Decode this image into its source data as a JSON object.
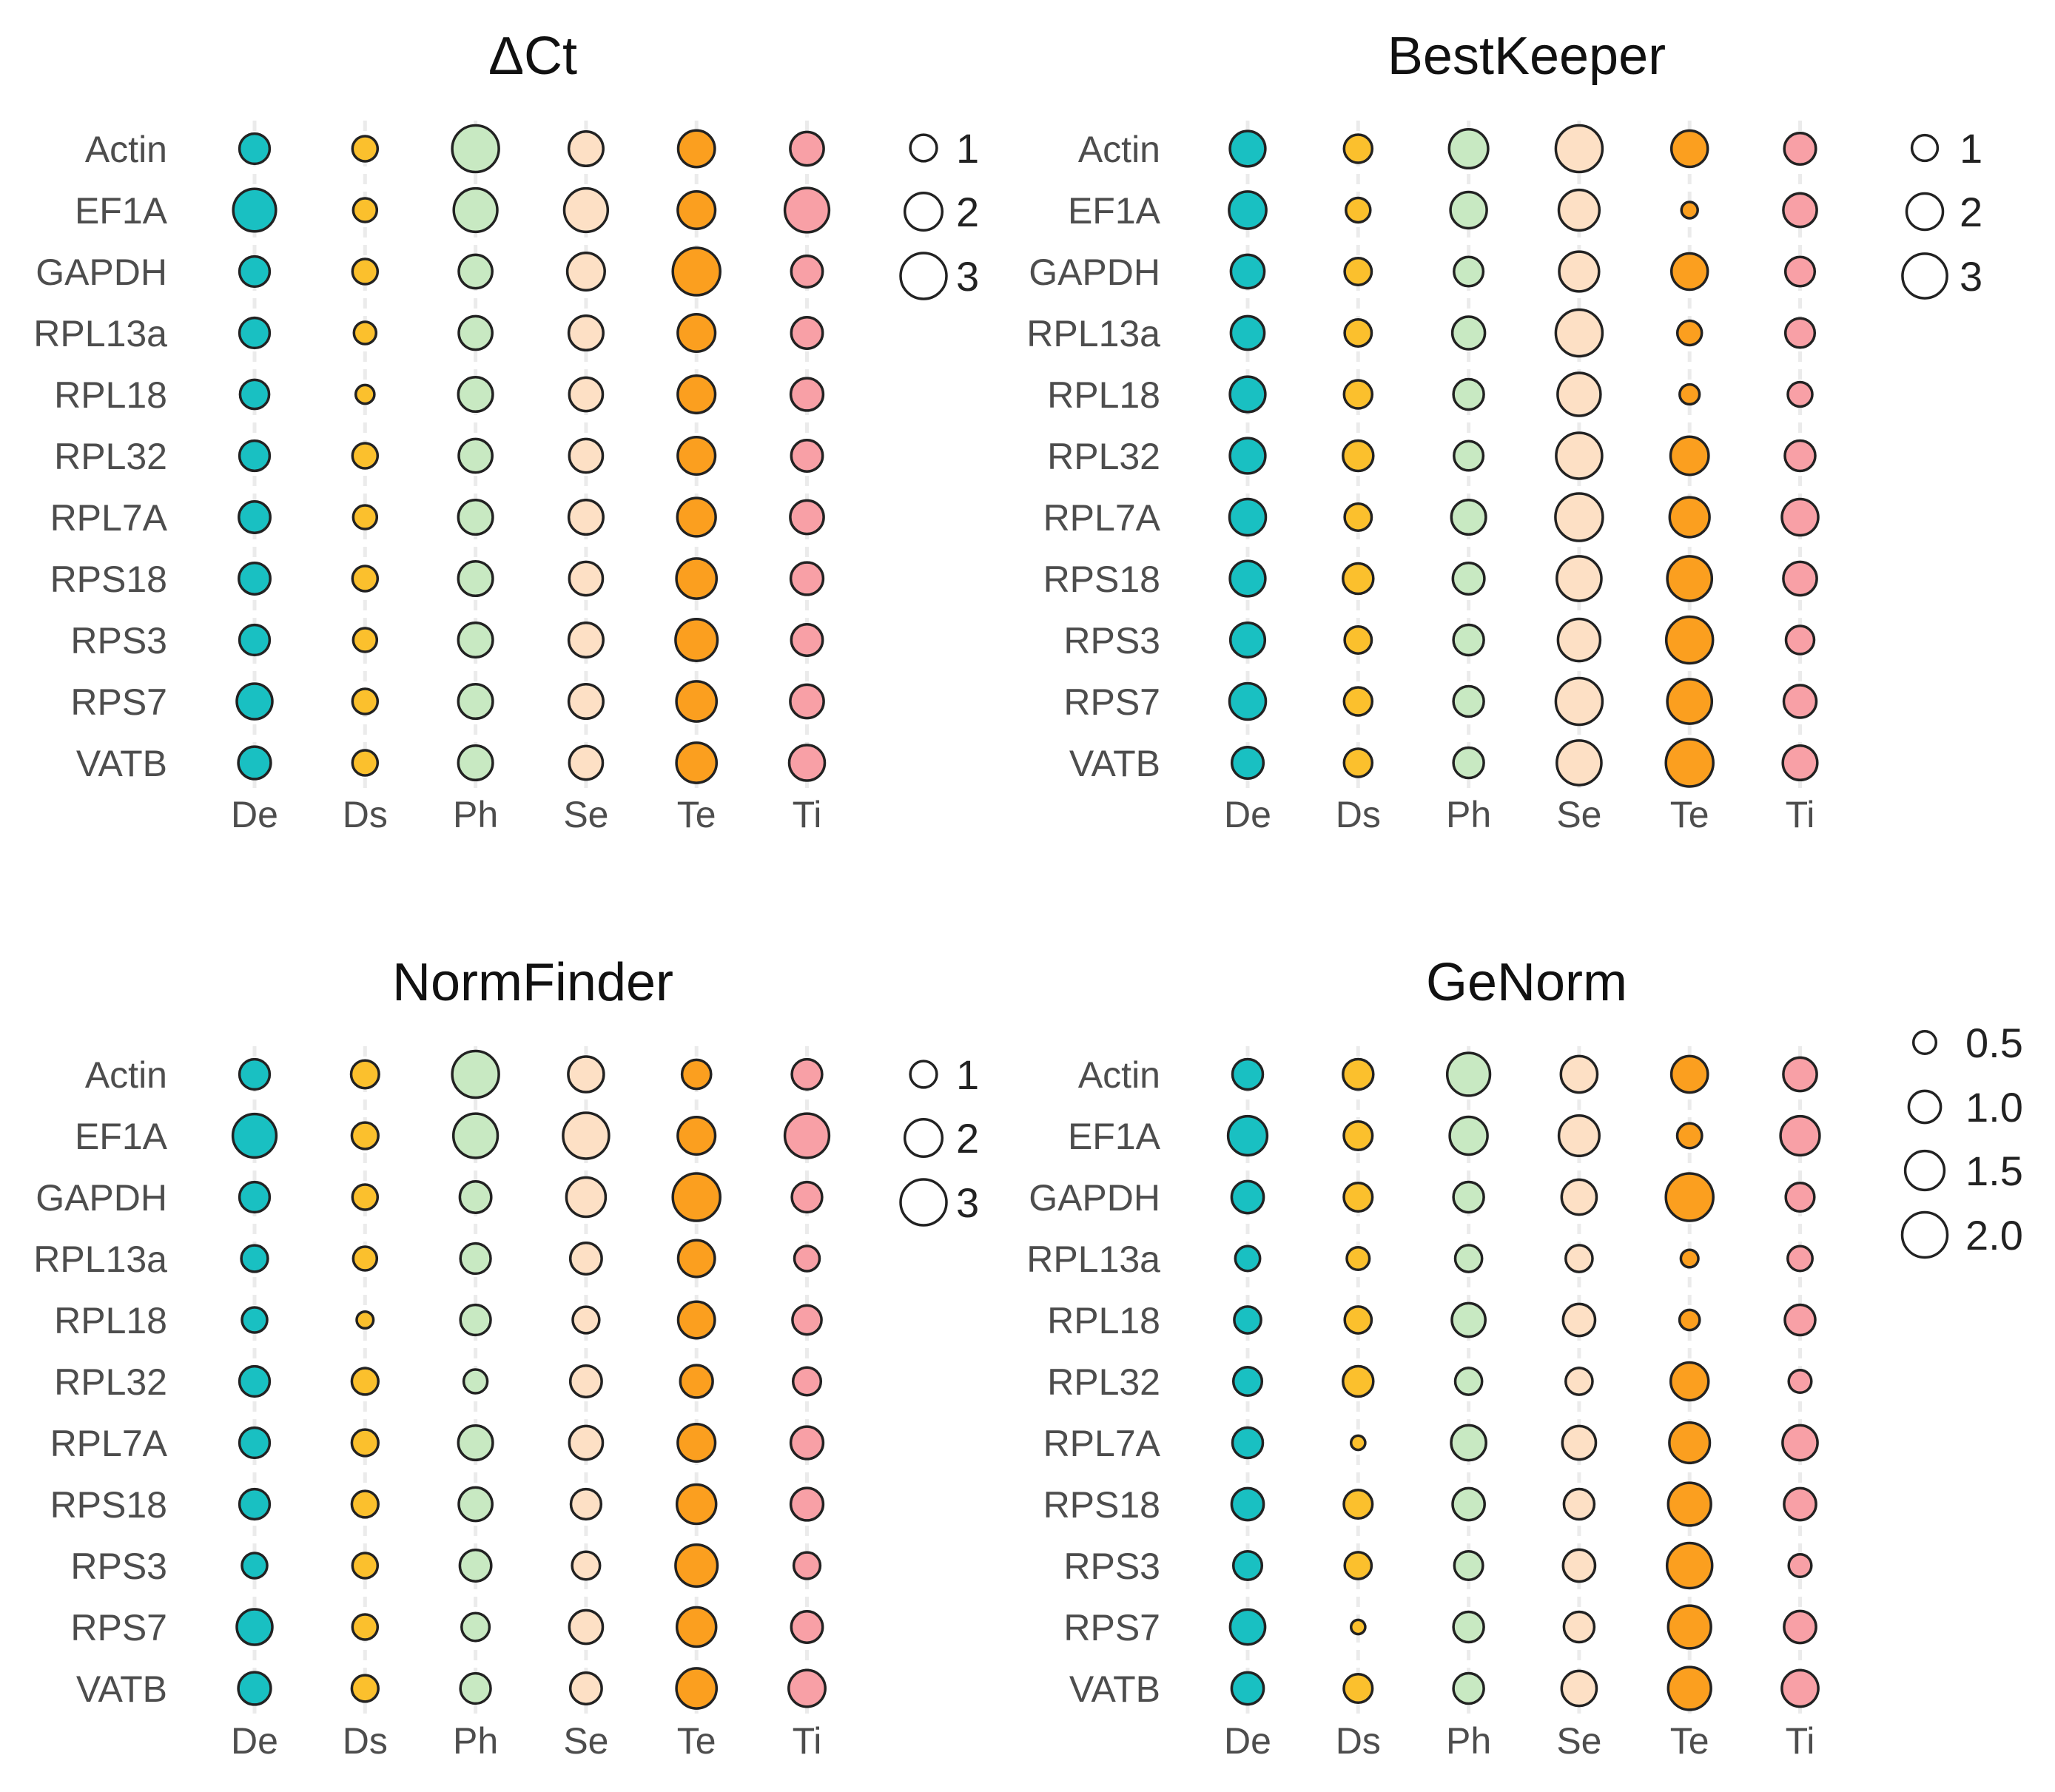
{
  "colors": {
    "De": "#19c0c2",
    "Ds": "#fbc02d",
    "Ph": "#c8e9c2",
    "Se": "#fde0c5",
    "Te": "#fb9f1f",
    "Ti": "#f8a0a6"
  },
  "chart_data": [
    {
      "type": "scatter",
      "title": "ΔCt",
      "genes": [
        "Actin",
        "EF1A",
        "GAPDH",
        "RPL13a",
        "RPL18",
        "RPL32",
        "RPL7A",
        "RPS18",
        "RPS3",
        "RPS7",
        "VATB"
      ],
      "tissues": [
        "De",
        "Ds",
        "Ph",
        "Se",
        "Te",
        "Ti"
      ],
      "values": [
        [
          1.3,
          0.9,
          3.1,
          1.7,
          1.9,
          1.6
        ],
        [
          2.6,
          0.8,
          2.7,
          2.7,
          2.0,
          2.8
        ],
        [
          1.3,
          0.9,
          1.6,
          2.0,
          3.2,
          1.4
        ],
        [
          1.3,
          0.7,
          1.6,
          1.7,
          2.0,
          1.4
        ],
        [
          1.2,
          0.5,
          1.7,
          1.6,
          2.0,
          1.5
        ],
        [
          1.3,
          0.9,
          1.6,
          1.6,
          2.0,
          1.4
        ],
        [
          1.4,
          0.8,
          1.7,
          1.7,
          2.1,
          1.6
        ],
        [
          1.4,
          0.9,
          1.7,
          1.6,
          2.3,
          1.5
        ],
        [
          1.3,
          0.8,
          1.7,
          1.7,
          2.5,
          1.4
        ],
        [
          1.8,
          0.9,
          1.7,
          1.7,
          2.3,
          1.6
        ],
        [
          1.5,
          0.9,
          1.7,
          1.6,
          2.3,
          1.8
        ]
      ],
      "legend": {
        "labels": [
          "1",
          "2",
          "3"
        ],
        "values": [
          1,
          2,
          3
        ]
      }
    },
    {
      "type": "scatter",
      "title": "BestKeeper",
      "genes": [
        "Actin",
        "EF1A",
        "GAPDH",
        "RPL13a",
        "RPL18",
        "RPL32",
        "RPL7A",
        "RPS18",
        "RPS3",
        "RPS7",
        "VATB"
      ],
      "tissues": [
        "De",
        "Ds",
        "Ph",
        "Se",
        "Te",
        "Ti"
      ],
      "values": [
        [
          1.9,
          1.2,
          2.3,
          3.3,
          2.0,
          1.5
        ],
        [
          2.1,
          0.9,
          2.0,
          2.5,
          0.4,
          1.7
        ],
        [
          1.7,
          1.1,
          1.3,
          2.4,
          2.0,
          1.3
        ],
        [
          1.7,
          1.1,
          1.6,
          3.3,
          0.9,
          1.3
        ],
        [
          1.9,
          1.2,
          1.4,
          2.8,
          0.6,
          0.9
        ],
        [
          1.9,
          1.4,
          1.3,
          3.2,
          2.2,
          1.4
        ],
        [
          2.0,
          1.1,
          1.8,
          3.4,
          2.4,
          2.0
        ],
        [
          1.9,
          1.4,
          1.5,
          3.0,
          3.0,
          1.7
        ],
        [
          1.8,
          1.1,
          1.4,
          2.7,
          3.3,
          1.2
        ],
        [
          2.0,
          1.2,
          1.4,
          3.3,
          3.0,
          1.6
        ],
        [
          1.5,
          1.2,
          1.4,
          3.0,
          3.4,
          1.8
        ]
      ],
      "legend": {
        "labels": [
          "1",
          "2",
          "3"
        ],
        "values": [
          1,
          2,
          3
        ]
      }
    },
    {
      "type": "scatter",
      "title": "NormFinder",
      "genes": [
        "Actin",
        "EF1A",
        "GAPDH",
        "RPL13a",
        "RPL18",
        "RPL32",
        "RPL7A",
        "RPS18",
        "RPS3",
        "RPS7",
        "VATB"
      ],
      "tissues": [
        "De",
        "Ds",
        "Ph",
        "Se",
        "Te",
        "Ti"
      ],
      "values": [
        [
          1.3,
          1.1,
          3.1,
          1.8,
          1.2,
          1.3
        ],
        [
          2.7,
          1.0,
          2.8,
          3.0,
          2.0,
          2.8
        ],
        [
          1.3,
          0.9,
          1.4,
          2.2,
          3.2,
          1.3
        ],
        [
          1.0,
          0.8,
          1.3,
          1.4,
          1.9,
          0.9
        ],
        [
          0.9,
          0.4,
          1.3,
          1.0,
          1.9,
          1.2
        ],
        [
          1.3,
          1.0,
          0.8,
          1.4,
          1.5,
          1.1
        ],
        [
          1.3,
          1.0,
          1.7,
          1.6,
          2.0,
          1.5
        ],
        [
          1.3,
          1.0,
          1.6,
          1.3,
          2.2,
          1.5
        ],
        [
          0.9,
          0.9,
          1.4,
          1.1,
          2.5,
          1.0
        ],
        [
          1.8,
          0.9,
          1.1,
          1.6,
          2.2,
          1.4
        ],
        [
          1.5,
          1.0,
          1.3,
          1.4,
          2.3,
          1.9
        ]
      ],
      "legend": {
        "labels": [
          "1",
          "2",
          "3"
        ],
        "values": [
          1,
          2,
          3
        ]
      }
    },
    {
      "type": "scatter",
      "title": "GeNorm",
      "genes": [
        "Actin",
        "EF1A",
        "GAPDH",
        "RPL13a",
        "RPL18",
        "RPL32",
        "RPL7A",
        "RPS18",
        "RPS3",
        "RPS7",
        "VATB"
      ],
      "tissues": [
        "De",
        "Ds",
        "Ph",
        "Se",
        "Te",
        "Ti"
      ],
      "values": [
        [
          0.9,
          0.9,
          1.8,
          1.3,
          1.3,
          1.1
        ],
        [
          1.5,
          0.8,
          1.4,
          1.6,
          0.6,
          1.5
        ],
        [
          1.0,
          0.8,
          0.9,
          1.2,
          2.2,
          0.8
        ],
        [
          0.6,
          0.5,
          0.7,
          0.7,
          0.3,
          0.6
        ],
        [
          0.7,
          0.7,
          1.1,
          1.0,
          0.4,
          0.9
        ],
        [
          0.8,
          0.9,
          0.7,
          0.7,
          1.4,
          0.5
        ],
        [
          0.9,
          0.2,
          1.2,
          1.1,
          1.6,
          1.2
        ],
        [
          1.0,
          0.8,
          1.0,
          0.9,
          1.8,
          1.0
        ],
        [
          0.8,
          0.7,
          0.8,
          1.0,
          2.0,
          0.5
        ],
        [
          1.2,
          0.2,
          0.9,
          0.9,
          1.8,
          1.0
        ],
        [
          1.0,
          0.8,
          0.9,
          1.2,
          1.8,
          1.3
        ]
      ],
      "legend": {
        "labels": [
          "0.5",
          "1.0",
          "1.5",
          "2.0"
        ],
        "values": [
          0.5,
          1.0,
          1.5,
          2.0
        ]
      }
    }
  ]
}
